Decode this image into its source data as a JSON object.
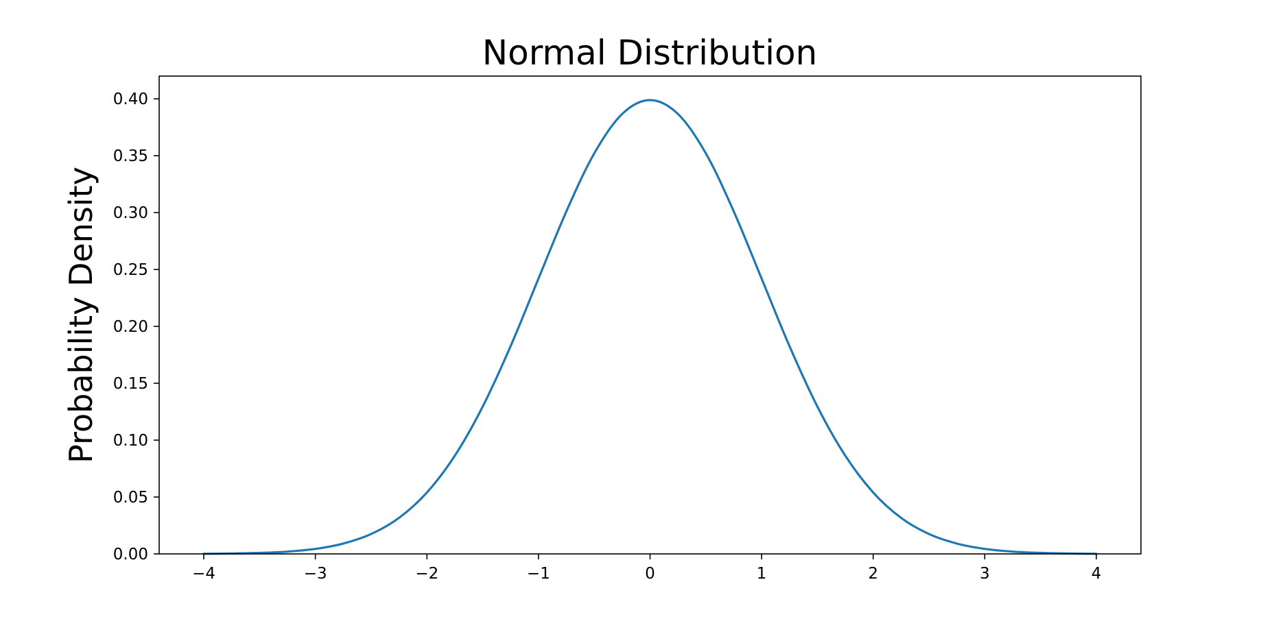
{
  "chart_data": {
    "type": "line",
    "title": "Normal Distribution",
    "xlabel": "",
    "ylabel": "Probability Density",
    "xlim": [
      -4.4,
      4.4
    ],
    "ylim": [
      0,
      0.42
    ],
    "x_ticks": [
      -4,
      -3,
      -2,
      -1,
      0,
      1,
      2,
      3,
      4
    ],
    "x_tick_labels": [
      "−4",
      "−3",
      "−2",
      "−1",
      "0",
      "1",
      "2",
      "3",
      "4"
    ],
    "y_ticks": [
      0,
      0.05,
      0.1,
      0.15,
      0.2,
      0.25,
      0.3,
      0.35,
      0.4
    ],
    "y_tick_labels": [
      "0.00",
      "0.05",
      "0.10",
      "0.15",
      "0.20",
      "0.25",
      "0.30",
      "0.35",
      "0.40"
    ],
    "grid": false,
    "legend": "none",
    "series": [
      {
        "color": "#1f77b4",
        "x": [
          -4.0,
          -3.75,
          -3.5,
          -3.25,
          -3.0,
          -2.75,
          -2.5,
          -2.25,
          -2.0,
          -1.75,
          -1.5,
          -1.25,
          -1.0,
          -0.75,
          -0.5,
          -0.25,
          0.0,
          0.25,
          0.5,
          0.75,
          1.0,
          1.25,
          1.5,
          1.75,
          2.0,
          2.25,
          2.5,
          2.75,
          3.0,
          3.25,
          3.5,
          3.75,
          4.0
        ],
        "y": [
          0.0001,
          0.0004,
          0.0009,
          0.002,
          0.0044,
          0.0091,
          0.0175,
          0.0317,
          0.054,
          0.0863,
          0.1295,
          0.1826,
          0.242,
          0.3011,
          0.3521,
          0.3867,
          0.3989,
          0.3867,
          0.3521,
          0.3011,
          0.242,
          0.1826,
          0.1295,
          0.0863,
          0.054,
          0.0317,
          0.0175,
          0.0091,
          0.0044,
          0.002,
          0.0009,
          0.0004,
          0.0001
        ]
      }
    ]
  }
}
